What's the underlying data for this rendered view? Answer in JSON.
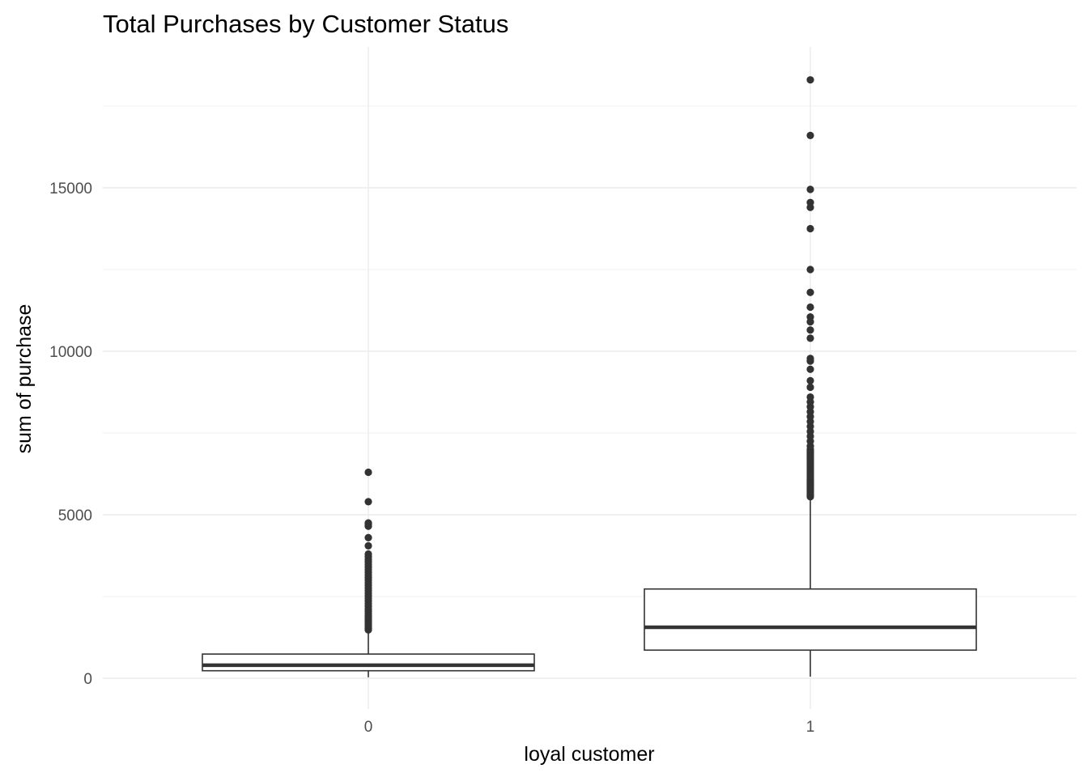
{
  "chart_data": {
    "type": "boxplot",
    "title": "Total Purchases by Customer Status",
    "xlabel": "loyal customer",
    "ylabel": "sum of purchase",
    "categories": [
      "0",
      "1"
    ],
    "ylim": [
      -800,
      19400
    ],
    "yticks": [
      0,
      5000,
      10000,
      15000
    ],
    "ytick_labels": [
      "0",
      "5000",
      "10000",
      "15000"
    ],
    "grid": true,
    "legend": "none",
    "colors": {
      "box_line": "#333333",
      "box_fill": "#ffffff",
      "grid": "#ebebeb"
    },
    "boxes": [
      {
        "category": "0",
        "whisker_low": 30,
        "q1": 230,
        "median": 400,
        "q3": 740,
        "whisker_high": 1430,
        "outliers": [
          1480,
          1520,
          1560,
          1600,
          1650,
          1700,
          1750,
          1800,
          1860,
          1920,
          1980,
          2050,
          2120,
          2200,
          2280,
          2360,
          2440,
          2520,
          2600,
          2680,
          2760,
          2840,
          2920,
          3000,
          3080,
          3160,
          3240,
          3320,
          3400,
          3480,
          3560,
          3640,
          3720,
          3800,
          4050,
          4300,
          4650,
          4700,
          4750,
          5400,
          6300
        ]
      },
      {
        "category": "1",
        "whisker_low": 50,
        "q1": 860,
        "median": 1560,
        "q3": 2730,
        "whisker_high": 5500,
        "outliers": [
          5550,
          5600,
          5650,
          5700,
          5750,
          5800,
          5850,
          5900,
          5950,
          6000,
          6050,
          6100,
          6150,
          6200,
          6250,
          6300,
          6350,
          6400,
          6450,
          6500,
          6550,
          6600,
          6650,
          6700,
          6750,
          6800,
          6850,
          6900,
          6950,
          7000,
          7100,
          7250,
          7400,
          7550,
          7700,
          7850,
          8000,
          8150,
          8300,
          8450,
          8600,
          8900,
          9100,
          9450,
          9700,
          9780,
          10400,
          10650,
          10900,
          11050,
          11350,
          11800,
          12500,
          13750,
          14400,
          14550,
          14950,
          16600,
          18300
        ]
      }
    ]
  }
}
